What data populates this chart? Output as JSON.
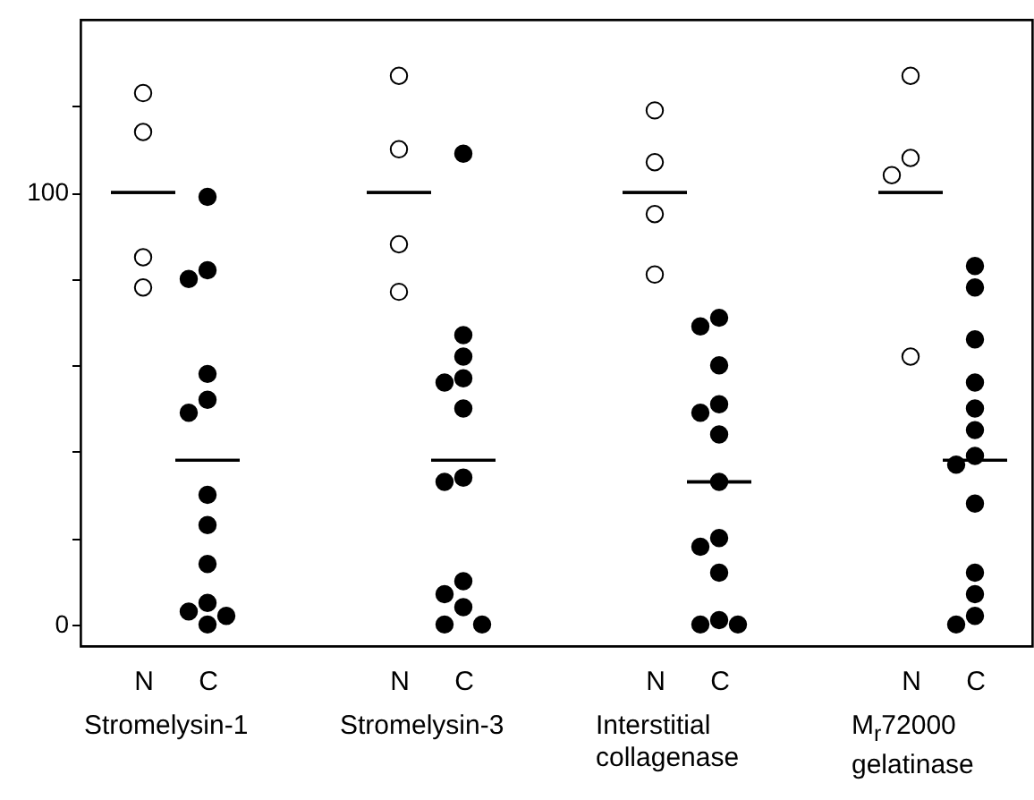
{
  "chart_data": {
    "type": "scatter",
    "categories": [
      "N",
      "C",
      "N",
      "C",
      "N",
      "C",
      "N",
      "C"
    ],
    "annotations": [
      "Stromelysin-1",
      "Stromelysin-3",
      "Interstitial collagenase",
      "M$_{r}$72000 gelatinase"
    ],
    "ylim": [
      -5,
      140
    ],
    "yticks": [
      0,
      {
        "value": 20,
        "label": null
      },
      {
        "value": 40,
        "label": null
      },
      {
        "value": 60,
        "label": null
      },
      {
        "value": 80,
        "label": null
      },
      100,
      {
        "value": 120,
        "label": null
      }
    ],
    "marker": "circle",
    "series": [
      {
        "type": "box",
        "color": "#000000",
        "boxes": [
          {
            "low": 100,
            "q1": 100,
            "median": 100,
            "q3": 100,
            "high": 100
          },
          {
            "low": 38,
            "q1": 38,
            "median": 38,
            "q3": 38,
            "high": 38
          },
          {
            "low": 100,
            "q1": 100,
            "median": 100,
            "q3": 100,
            "high": 100
          },
          {
            "low": 38,
            "q1": 38,
            "median": 38,
            "q3": 38,
            "high": 38
          },
          {
            "low": 100,
            "q1": 100,
            "median": 100,
            "q3": 100,
            "high": 100
          },
          {
            "low": 33,
            "q1": 33,
            "median": 33,
            "q3": 33,
            "high": 33
          },
          {
            "low": 100,
            "q1": 100,
            "median": 100,
            "q3": 100,
            "high": 100
          },
          {
            "low": 38,
            "q1": 38,
            "median": 38,
            "q3": 38,
            "high": 38
          }
        ]
      },
      {
        "type": "scatter",
        "colors": [
          "#ffffff",
          "#000000",
          "#ffffff",
          "#000000",
          "#ffffff",
          "#000000",
          "#ffffff",
          "#000000"
        ],
        "values": [
          123,
          99,
          127,
          109,
          119,
          71,
          127,
          83
        ]
      },
      {
        "type": "scatter",
        "colors": [
          "#ffffff",
          "#000000",
          "#ffffff",
          "#000000",
          "#ffffff",
          "#000000",
          "#ffffff",
          "#000000"
        ],
        "values": [
          114,
          82,
          110,
          67,
          107,
          69,
          108,
          78
        ]
      },
      {
        "type": "scatter",
        "colors": [
          "#ffffff",
          "#000000",
          "#ffffff",
          "#000000",
          "#ffffff",
          "#000000",
          "#ffffff",
          "#000000"
        ],
        "values": [
          85,
          80,
          88,
          62,
          95,
          60,
          104,
          66
        ]
      },
      {
        "type": "scatter",
        "colors": [
          "#ffffff",
          "#000000",
          "#ffffff",
          "#000000",
          "#ffffff",
          "#000000",
          "#ffffff",
          "#000000"
        ],
        "values": [
          78,
          58,
          77,
          57,
          81,
          51,
          62,
          56
        ]
      },
      {
        "type": "scatter",
        "colors": [
          null,
          "#000000",
          null,
          "#000000",
          null,
          "#000000",
          null,
          "#000000"
        ],
        "values": [
          null,
          52,
          null,
          56,
          null,
          49,
          null,
          50
        ]
      },
      {
        "type": "scatter",
        "colors": [
          null,
          "#000000",
          null,
          "#000000",
          null,
          "#000000",
          null,
          "#000000"
        ],
        "values": [
          null,
          49,
          null,
          50,
          null,
          44,
          null,
          45
        ]
      },
      {
        "type": "scatter",
        "colors": [
          null,
          "#000000",
          null,
          "#000000",
          null,
          "#000000",
          null,
          "#000000"
        ],
        "values": [
          null,
          30,
          null,
          34,
          null,
          33,
          null,
          39
        ]
      },
      {
        "type": "scatter",
        "colors": [
          null,
          "#000000",
          null,
          "#000000",
          null,
          "#000000",
          null,
          "#000000"
        ],
        "values": [
          null,
          23,
          null,
          33,
          null,
          20,
          null,
          37
        ]
      },
      {
        "type": "scatter",
        "colors": [
          null,
          "#000000",
          null,
          "#000000",
          null,
          "#000000",
          null,
          "#000000"
        ],
        "values": [
          null,
          14,
          null,
          10,
          null,
          18,
          null,
          28
        ]
      },
      {
        "type": "scatter",
        "colors": [
          null,
          "#000000",
          null,
          "#000000",
          null,
          "#000000",
          null,
          "#000000"
        ],
        "values": [
          null,
          5,
          null,
          7,
          null,
          12,
          null,
          12
        ]
      },
      {
        "type": "scatter",
        "colors": [
          null,
          "#000000",
          null,
          "#000000",
          null,
          "#000000",
          null,
          "#000000"
        ],
        "values": [
          null,
          3,
          null,
          4,
          null,
          1,
          null,
          7
        ]
      },
      {
        "type": "scatter",
        "colors": [
          null,
          "#000000",
          null,
          "#000000",
          null,
          "#000000",
          null,
          "#000000"
        ],
        "values": [
          null,
          2,
          null,
          0,
          null,
          0,
          null,
          2
        ]
      },
      {
        "type": "scatter",
        "colors": [
          null,
          "#000000",
          null,
          "#000000",
          null,
          "#000000",
          null,
          "#000000"
        ],
        "values": [
          null,
          0,
          null,
          0,
          null,
          0,
          null,
          0
        ]
      }
    ]
  }
}
